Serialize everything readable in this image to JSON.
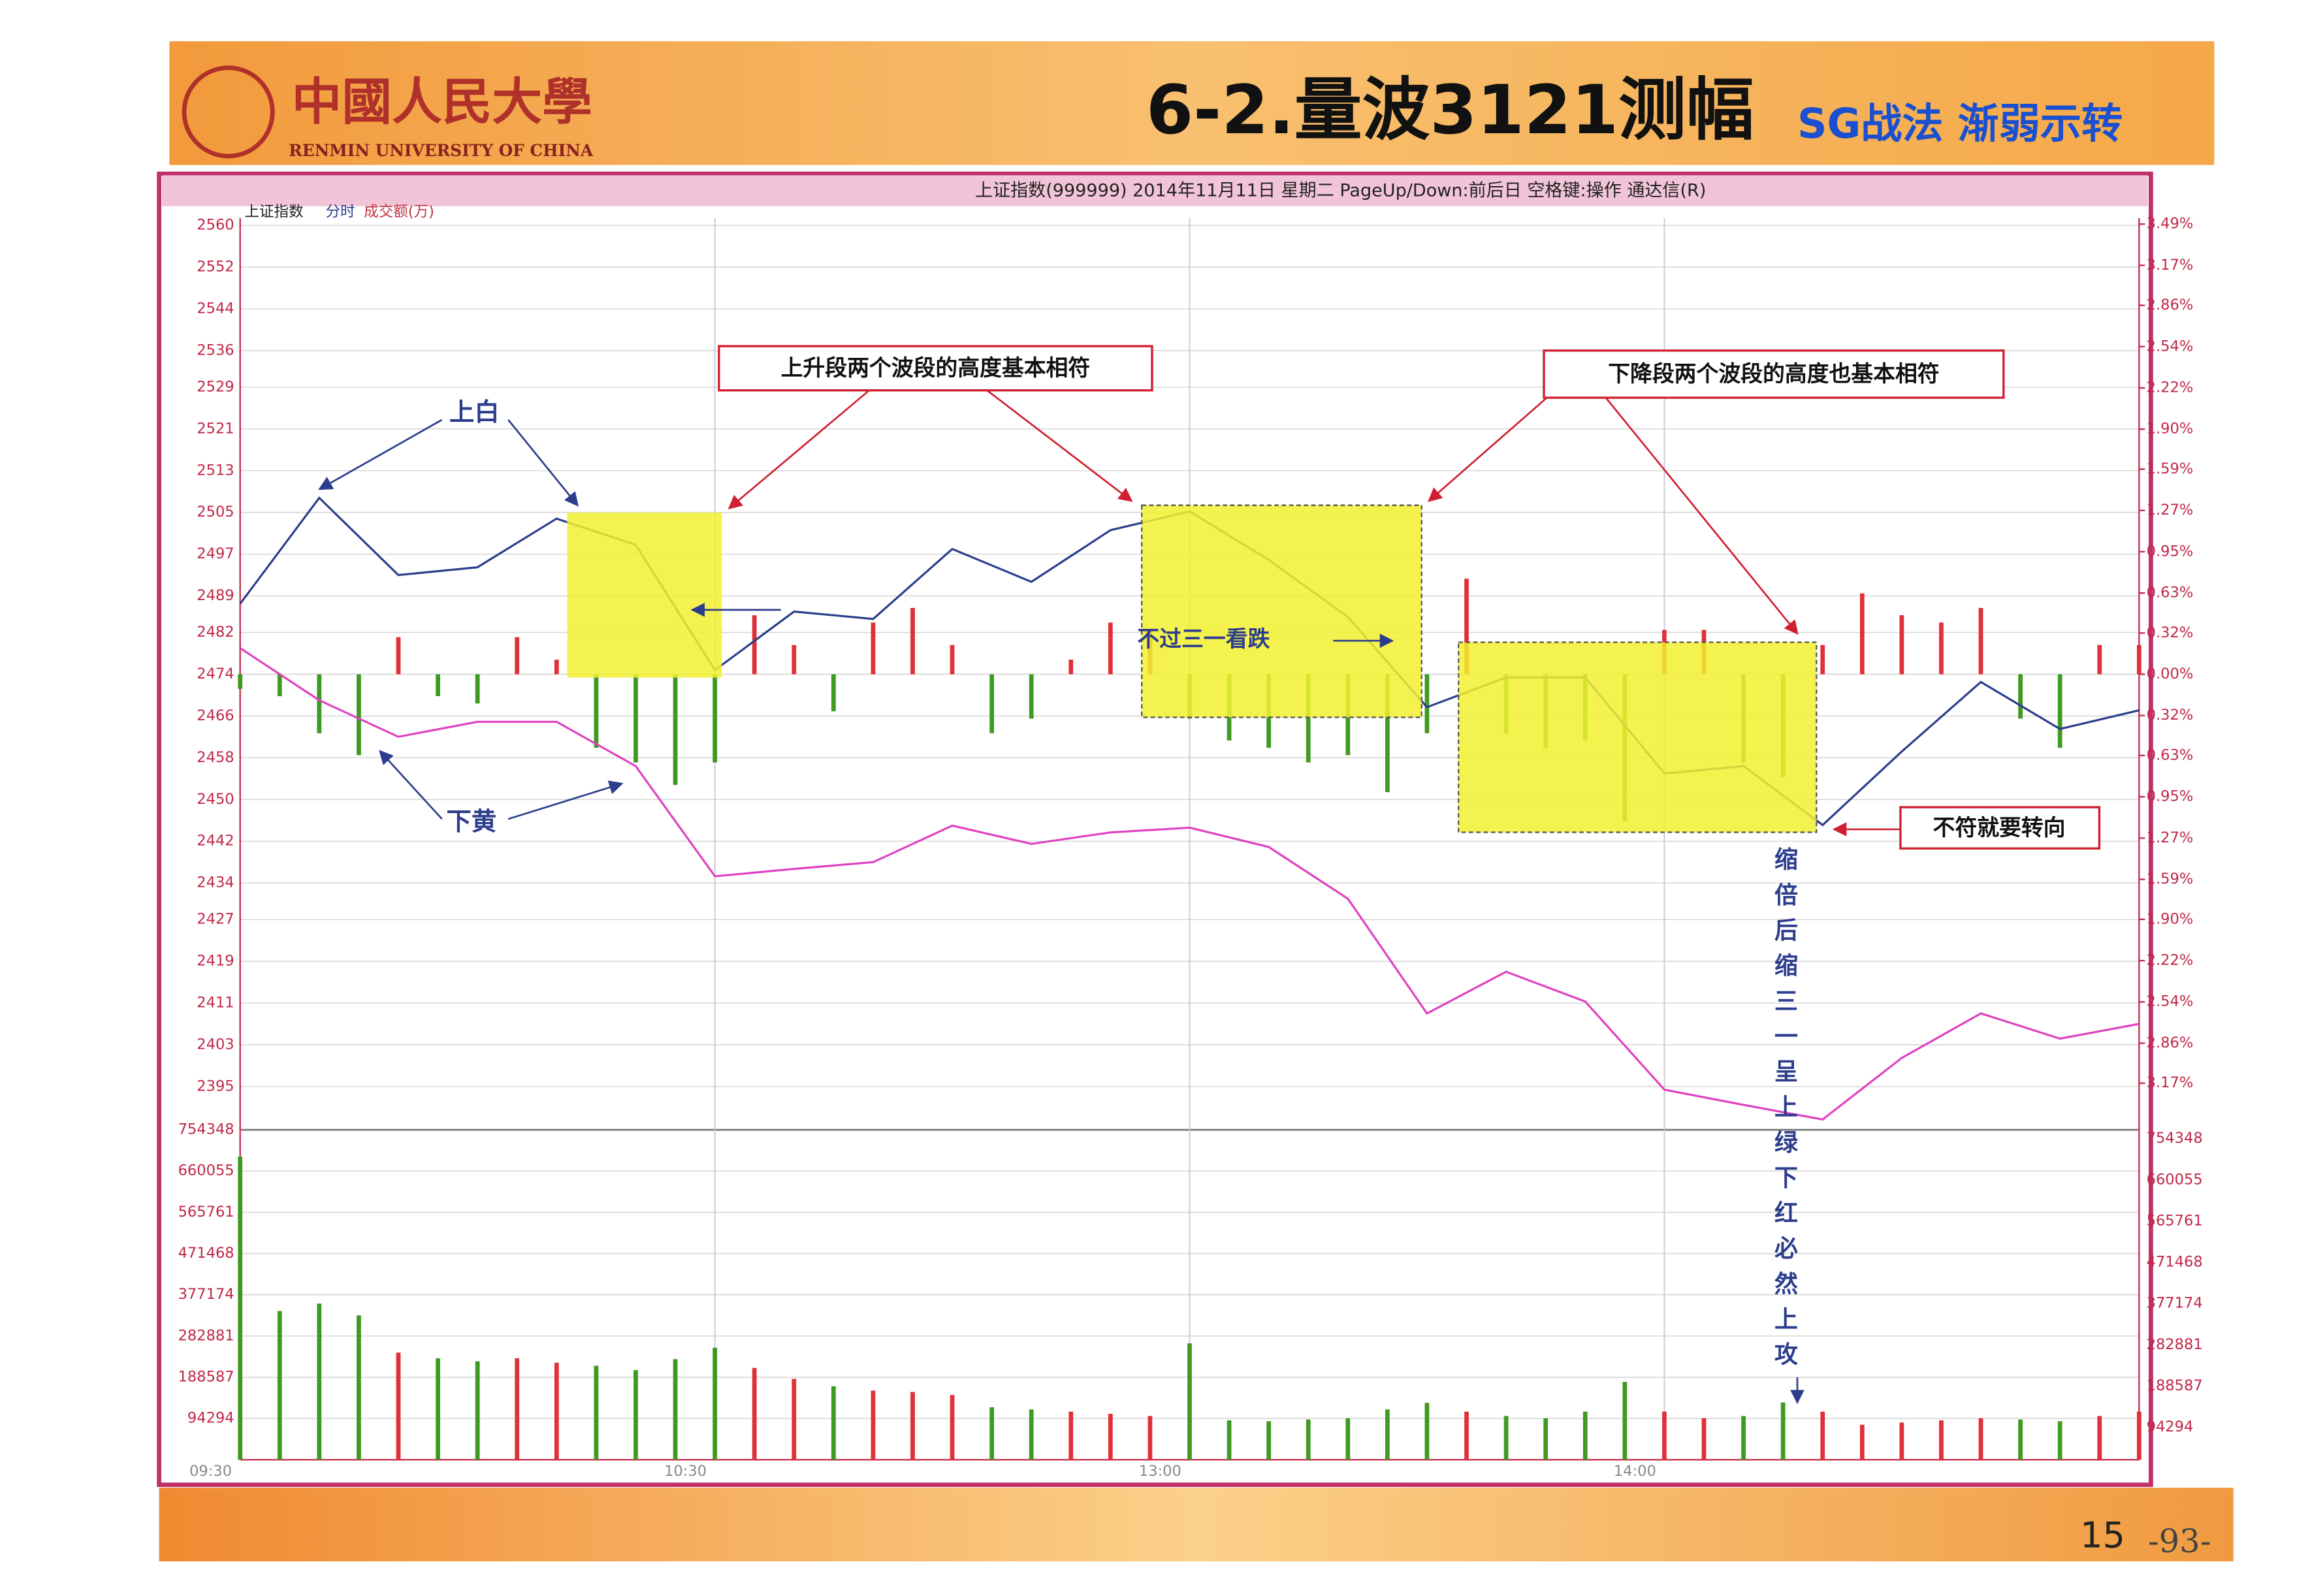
{
  "chart_data": {
    "type": "line",
    "logo": "中國人民大學",
    "logo_en": "RENMIN UNIVERSITY OF CHINA",
    "title": "6-2.量波3121测幅",
    "subtitle": "SG战法 渐弱示转",
    "header": "上证指数(999999) 2014年11月11日 星期二 PageUp/Down:前后日 空格键:操作 通达信(R)",
    "panel_labels": [
      "上证指数",
      "分时",
      "成交额(万)"
    ],
    "annotations": [
      "上升段两个波段的高度基本相符",
      "下降段两个波段的高度也基本相符",
      "上白",
      "下黄",
      "不过三一看跌",
      "不符就要转向",
      "缩倍后缩三一呈上绿下红必然上攻"
    ],
    "page_numbers": [
      "15",
      "-93-"
    ],
    "x": [
      0,
      10,
      20,
      30,
      40,
      50,
      60,
      70,
      80,
      90,
      100,
      110,
      120,
      130,
      140,
      150,
      160,
      170,
      180,
      190,
      200,
      210,
      220,
      230,
      240
    ],
    "xlim": [
      0,
      240
    ],
    "xticks": [
      {
        "value": 0,
        "label": "09:30"
      },
      {
        "value": 60,
        "label": "10:30"
      },
      {
        "value": 120,
        "label": "13:00"
      },
      {
        "value": 180,
        "label": "14:00"
      }
    ],
    "ylim": [
      2387,
      2560
    ],
    "yticks": [
      2560,
      2552,
      2544,
      2536,
      2529,
      2521,
      2513,
      2505,
      2497,
      2489,
      2482,
      2474,
      2466,
      2458,
      2450,
      2442,
      2434,
      2427,
      2419,
      2411,
      2403,
      2395
    ],
    "y2lim": [
      -3.52,
      3.48
    ],
    "y2ticks": [
      {
        "value": 3.49,
        "label": "3.49%"
      },
      {
        "value": 3.17,
        "label": "3.17%"
      },
      {
        "value": 2.86,
        "label": "2.86%"
      },
      {
        "value": 2.54,
        "label": "2.54%"
      },
      {
        "value": 2.22,
        "label": "2.22%"
      },
      {
        "value": 1.9,
        "label": "1.90%"
      },
      {
        "value": 1.59,
        "label": "1.59%"
      },
      {
        "value": 1.27,
        "label": "1.27%"
      },
      {
        "value": 0.95,
        "label": "0.95%"
      },
      {
        "value": 0.63,
        "label": "0.63%"
      },
      {
        "value": 0.32,
        "label": "0.32%"
      },
      {
        "value": 0,
        "label": "0.00%"
      },
      {
        "value": -0.32,
        "label": "0.32%"
      },
      {
        "value": -0.63,
        "label": "0.63%"
      },
      {
        "value": -0.95,
        "label": "0.95%"
      },
      {
        "value": -1.27,
        "label": "1.27%"
      },
      {
        "value": -1.59,
        "label": "1.59%"
      },
      {
        "value": -1.9,
        "label": "1.90%"
      },
      {
        "value": -2.22,
        "label": "2.22%"
      },
      {
        "value": -2.54,
        "label": "2.54%"
      },
      {
        "value": -2.86,
        "label": "2.86%"
      },
      {
        "value": -3.17,
        "label": "3.17%"
      }
    ],
    "series": [
      {
        "color": "#2b3d8c",
        "values": [
          2487.5,
          2507.8,
          2493,
          2494.5,
          2503.8,
          2498.8,
          2474.8,
          2486,
          2484.6,
          2498,
          2491.7,
          2501.6,
          2505.2,
          2495.9,
          2485,
          2467.7,
          2473.4,
          2473.4,
          2455,
          2456.4,
          2445.1,
          2459.2,
          2472.5,
          2463.5,
          2467.1
        ]
      },
      {
        "color": "#e040c0",
        "values": [
          2479,
          2469,
          2462,
          2464.9,
          2464.9,
          2456.4,
          2435.3,
          2436.7,
          2438,
          2445,
          2441.5,
          2443.7,
          2444.6,
          2440.9,
          2431,
          2409,
          2417,
          2411.3,
          2394.4,
          2391.5,
          2388.7,
          2400.5,
          2409,
          2404.2,
          2407
        ]
      }
    ],
    "bars": {
      "up_color": "#e0303a",
      "down_color": "#3f9a22",
      "x": [
        0,
        5,
        10,
        15,
        20,
        25,
        30,
        35,
        40,
        45,
        50,
        55,
        60,
        65,
        70,
        75,
        80,
        85,
        90,
        95,
        100,
        105,
        110,
        115,
        120,
        125,
        130,
        135,
        140,
        145,
        150,
        155,
        160,
        165,
        170,
        175,
        180,
        185,
        190,
        195,
        200,
        205,
        210,
        215,
        220,
        225,
        230,
        235,
        240
      ],
      "values": [
        2471.2,
        2469.8,
        2462.7,
        2458.5,
        2481.1,
        2469.8,
        2468.4,
        2481.1,
        2476.8,
        2459.9,
        2457.1,
        2452.8,
        2457.1,
        2485.3,
        2479.6,
        2466.9,
        2483.9,
        2486.7,
        2479.6,
        2462.7,
        2465.5,
        2476.8,
        2483.9,
        2482.5,
        2465.5,
        2461.3,
        2459.9,
        2457.1,
        2458.5,
        2451.4,
        2462.7,
        2492.3,
        2462.7,
        2459.9,
        2461.3,
        2445.8,
        2482.5,
        2482.5,
        2457.1,
        2454.3,
        2479.6,
        2489.5,
        2485.3,
        2483.9,
        2486.7,
        2465.5,
        2459.9,
        2479.6,
        2479.6
      ]
    },
    "volume": {
      "vlim": [
        0,
        754348
      ],
      "vticks": [
        754348,
        660055,
        565761,
        471468,
        377174,
        282881,
        188587,
        94294
      ],
      "values": [
        693000,
        340000,
        357000,
        330000,
        245000,
        232000,
        225000,
        232000,
        222000,
        215000,
        205000,
        230000,
        256000,
        210000,
        185000,
        168000,
        158000,
        155000,
        148000,
        120000,
        115000,
        110000,
        105000,
        100000,
        266000,
        90000,
        88000,
        92000,
        95000,
        115000,
        130000,
        110000,
        100000,
        95000,
        110000,
        178000,
        110000,
        95000,
        100000,
        131000,
        110000,
        80000,
        85000,
        90000,
        95000,
        92000,
        88000,
        100000,
        110000
      ]
    }
  }
}
